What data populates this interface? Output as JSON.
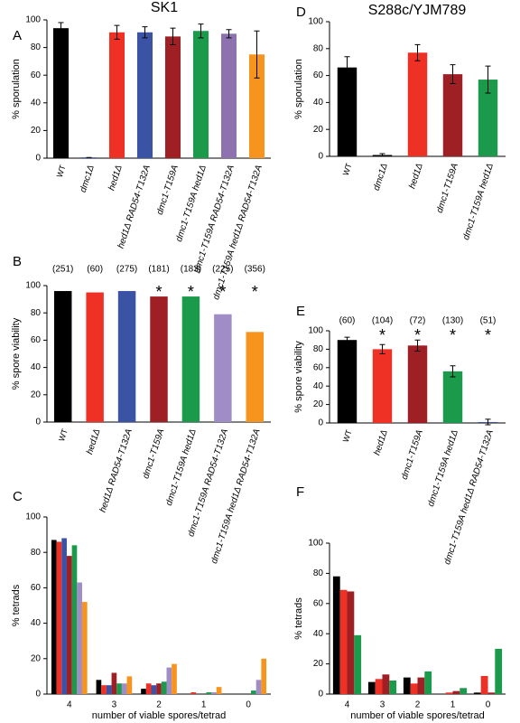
{
  "chart_data": [
    {
      "type": "bar",
      "panel": "A",
      "title": "SK1",
      "ylabel": "% sporulation",
      "categories": [
        "WT",
        "dmc1Δ",
        "hed1Δ",
        "hed1Δ RAD54-T132A",
        "dmc1-T159A",
        "dmc1-T159A hed1Δ",
        "dmc1-T159A RAD54-T132A",
        "dmc1-T159A hed1Δ RAD54-T132A"
      ],
      "values": [
        94,
        0.5,
        91,
        91,
        88,
        92,
        90,
        75
      ],
      "errors": [
        4,
        0,
        5,
        4,
        6,
        5,
        3,
        17
      ],
      "colors": [
        "#000000",
        "#2b3990",
        "#ee3124",
        "#3a53a4",
        "#9e1f24",
        "#1a9a4a",
        "#8e72b0",
        "#f7941d"
      ],
      "ylim": [
        0,
        100
      ],
      "yticks": [
        0,
        20,
        40,
        60,
        80,
        100
      ]
    },
    {
      "type": "bar",
      "panel": "D",
      "title": "S288c/YJM789",
      "ylabel": "% sporulation",
      "categories": [
        "WT",
        "dmc1Δ",
        "hed1Δ",
        "dmc1-T159A",
        "dmc1-T159A hed1Δ"
      ],
      "values": [
        66,
        1,
        77,
        61,
        57
      ],
      "errors": [
        8,
        1,
        6,
        7,
        10
      ],
      "colors": [
        "#000000",
        "#000000",
        "#ee3124",
        "#9e1f24",
        "#1a9a4a"
      ],
      "ylim": [
        0,
        100
      ],
      "yticks": [
        0,
        20,
        40,
        60,
        80,
        100
      ]
    },
    {
      "type": "bar",
      "panel": "B",
      "ylabel": "% spore viability",
      "categories": [
        "WT",
        "hed1Δ",
        "hed1Δ RAD54-T132A",
        "dmc1-T159A",
        "dmc1-T159A hed1Δ",
        "dmc1-T159A RAD54-T132A",
        "dmc1-T159A hed1Δ RAD54-T132A"
      ],
      "values": [
        96,
        95,
        96,
        92,
        92,
        79,
        66
      ],
      "counts": [
        "(251)",
        "(60)",
        "(275)",
        "(181)",
        "(183)",
        "(225)",
        "(356)"
      ],
      "stars": [
        null,
        null,
        null,
        "*",
        "*",
        "*",
        "*"
      ],
      "colors": [
        "#000000",
        "#ee3124",
        "#3a53a4",
        "#9e1f24",
        "#1a9a4a",
        "#a08cc6",
        "#f7941d"
      ],
      "ylim": [
        0,
        100
      ],
      "yticks": [
        0,
        20,
        40,
        60,
        80,
        100
      ]
    },
    {
      "type": "bar",
      "panel": "E",
      "ylabel": "% spore viability",
      "categories": [
        "WT",
        "hed1Δ",
        "dmc1-T159A",
        "dmc1-T159A hed1Δ",
        "dmc1-T159A hed1Δ RAD54-T132A"
      ],
      "values": [
        90,
        80,
        84,
        56,
        1
      ],
      "errors": [
        3,
        5,
        6,
        6,
        3
      ],
      "counts": [
        "(60)",
        "(104)",
        "(72)",
        "(130)",
        "(51)"
      ],
      "stars": [
        null,
        "*",
        "*",
        "*",
        "*"
      ],
      "colors": [
        "#000000",
        "#ee3124",
        "#9e1f24",
        "#1a9a4a",
        "#3a53a4"
      ],
      "ylim": [
        0,
        100
      ],
      "yticks": [
        0,
        20,
        40,
        60,
        80,
        100
      ]
    },
    {
      "type": "grouped_bar",
      "panel": "C",
      "ylabel": "% tetrads",
      "xlabel": "number of viable spores/tetrad",
      "categories": [
        "4",
        "3",
        "2",
        "1",
        "0"
      ],
      "series": [
        {
          "color": "#000000",
          "values": [
            87,
            8,
            3,
            0,
            0
          ]
        },
        {
          "color": "#ee3124",
          "values": [
            86,
            5,
            6,
            1,
            0
          ]
        },
        {
          "color": "#3a53a4",
          "values": [
            88,
            5,
            5,
            0,
            0
          ]
        },
        {
          "color": "#9e1f24",
          "values": [
            78,
            12,
            6,
            0,
            0
          ]
        },
        {
          "color": "#1a9a4a",
          "values": [
            84,
            6,
            7,
            1,
            2
          ]
        },
        {
          "color": "#a08cc6",
          "values": [
            63,
            6,
            15,
            1,
            8
          ]
        },
        {
          "color": "#f7941d",
          "values": [
            52,
            10,
            17,
            4,
            20
          ]
        }
      ],
      "ylim": [
        0,
        100
      ],
      "yticks": [
        0,
        20,
        40,
        60,
        80,
        100
      ]
    },
    {
      "type": "grouped_bar",
      "panel": "F",
      "ylabel": "% tetrads",
      "xlabel": "number of viable spores/tetrad",
      "categories": [
        "4",
        "3",
        "2",
        "1",
        "0"
      ],
      "series": [
        {
          "color": "#000000",
          "values": [
            78,
            8,
            11,
            0,
            1
          ]
        },
        {
          "color": "#ee3124",
          "values": [
            69,
            10,
            7,
            1,
            12
          ]
        },
        {
          "color": "#9e1f24",
          "values": [
            68,
            13,
            11,
            2,
            1
          ]
        },
        {
          "color": "#1a9a4a",
          "values": [
            39,
            9,
            15,
            4,
            30
          ]
        }
      ],
      "ylim": [
        0,
        100
      ],
      "yticks": [
        0,
        20,
        40,
        60,
        80,
        100
      ]
    }
  ]
}
